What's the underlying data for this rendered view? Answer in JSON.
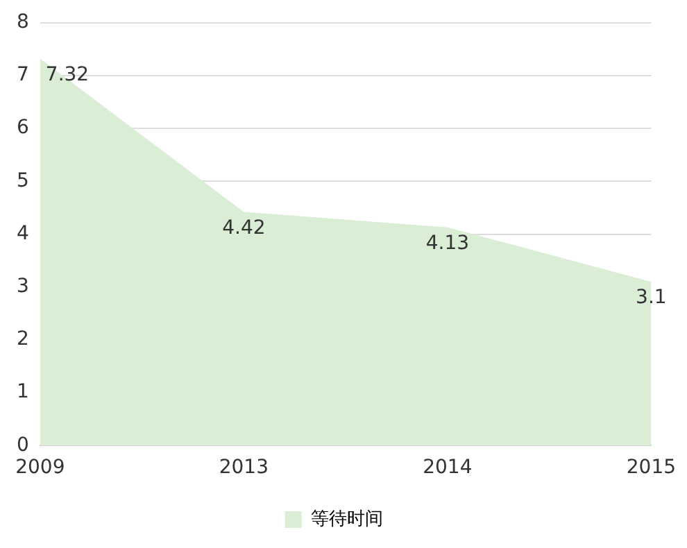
{
  "chart_data": {
    "type": "area",
    "categories": [
      "2009",
      "2013",
      "2014",
      "2015"
    ],
    "series": [
      {
        "name": "等待时间",
        "color": "#d9eed4",
        "values": [
          7.32,
          4.42,
          4.13,
          3.1
        ]
      }
    ],
    "ylim": [
      0,
      8
    ],
    "yticks": [
      0,
      1,
      2,
      3,
      4,
      5,
      6,
      7,
      8
    ],
    "grid": "y",
    "legend": "bottom",
    "data_labels": true
  }
}
